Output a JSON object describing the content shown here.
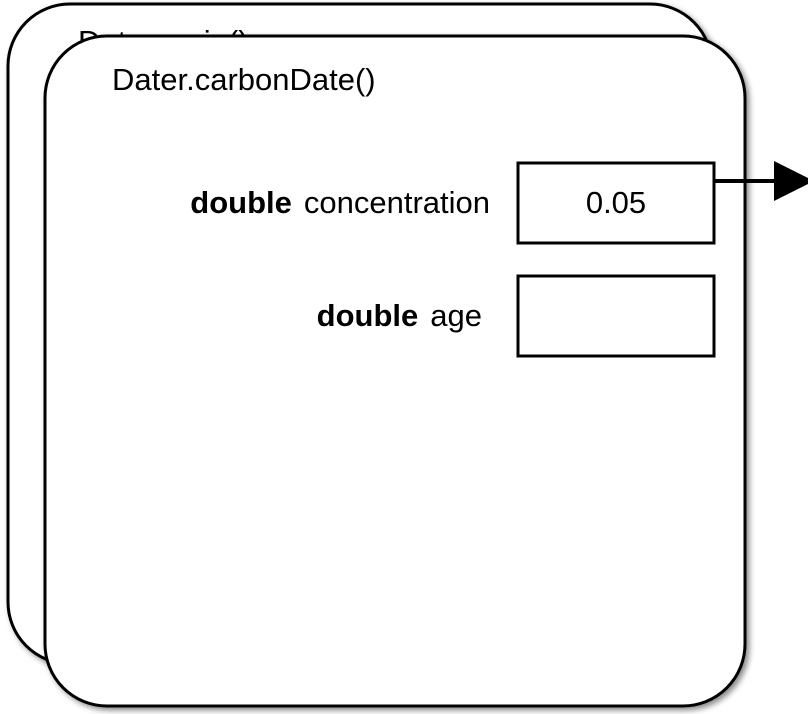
{
  "frames": [
    {
      "title": "Dater.main()"
    },
    {
      "title": "Dater.carbonDate()",
      "variables": [
        {
          "type": "double",
          "name": "concentration",
          "value": "0.05"
        },
        {
          "type": "double",
          "name": "age"
        }
      ]
    }
  ]
}
